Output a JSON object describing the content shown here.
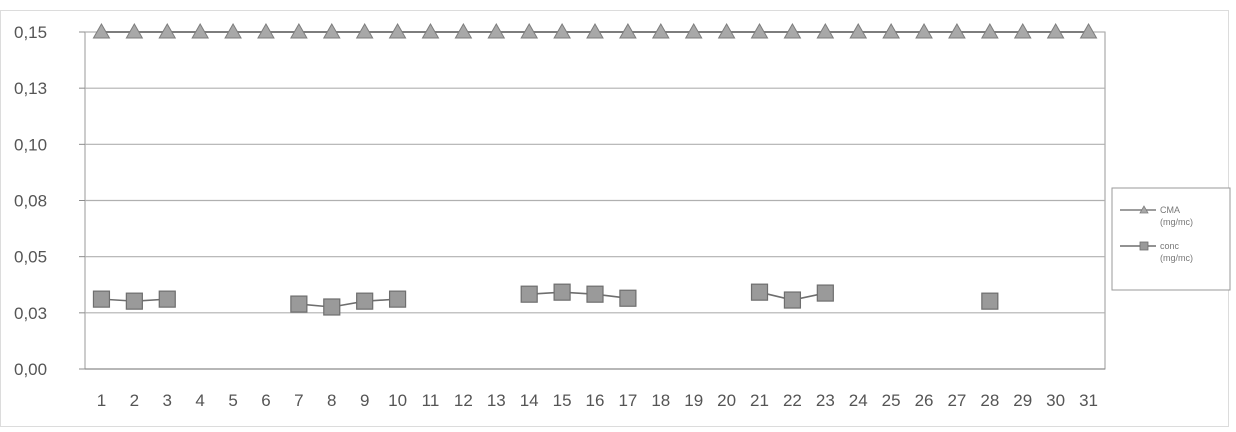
{
  "chart_data": {
    "type": "line",
    "title": "",
    "xlabel": "",
    "ylabel": "",
    "categories": [
      "1",
      "2",
      "3",
      "4",
      "5",
      "6",
      "7",
      "8",
      "9",
      "10",
      "11",
      "12",
      "13",
      "14",
      "15",
      "16",
      "17",
      "18",
      "19",
      "20",
      "21",
      "22",
      "23",
      "24",
      "25",
      "26",
      "27",
      "28",
      "29",
      "30",
      "31"
    ],
    "y_tick_labels": [
      "0,00",
      "0,03",
      "0,05",
      "0,08",
      "0,10",
      "0,13",
      "0,15"
    ],
    "ylim": [
      0,
      0.15
    ],
    "grid": true,
    "legend_position": "right",
    "series": [
      {
        "name": "CMA (mg/mc)",
        "marker": "triangle",
        "color": "#7d7d7d",
        "values": [
          0.15,
          0.15,
          0.15,
          0.15,
          0.15,
          0.15,
          0.15,
          0.15,
          0.15,
          0.15,
          0.15,
          0.15,
          0.15,
          0.15,
          0.15,
          0.15,
          0.15,
          0.15,
          0.15,
          0.15,
          0.15,
          0.15,
          0.15,
          0.15,
          0.15,
          0.15,
          0.15,
          0.15,
          0.15,
          0.15,
          0.15
        ]
      },
      {
        "name": "conc (mg/mc)",
        "marker": "square",
        "color": "#6e6e6e",
        "values": [
          0.0311,
          0.0302,
          0.0311,
          null,
          null,
          null,
          0.0289,
          0.0276,
          0.0302,
          0.0311,
          null,
          null,
          null,
          0.0333,
          0.0342,
          0.0333,
          0.0315,
          null,
          null,
          null,
          0.0342,
          0.0307,
          0.0338,
          null,
          null,
          null,
          null,
          0.0302,
          null,
          null,
          null
        ]
      }
    ]
  }
}
